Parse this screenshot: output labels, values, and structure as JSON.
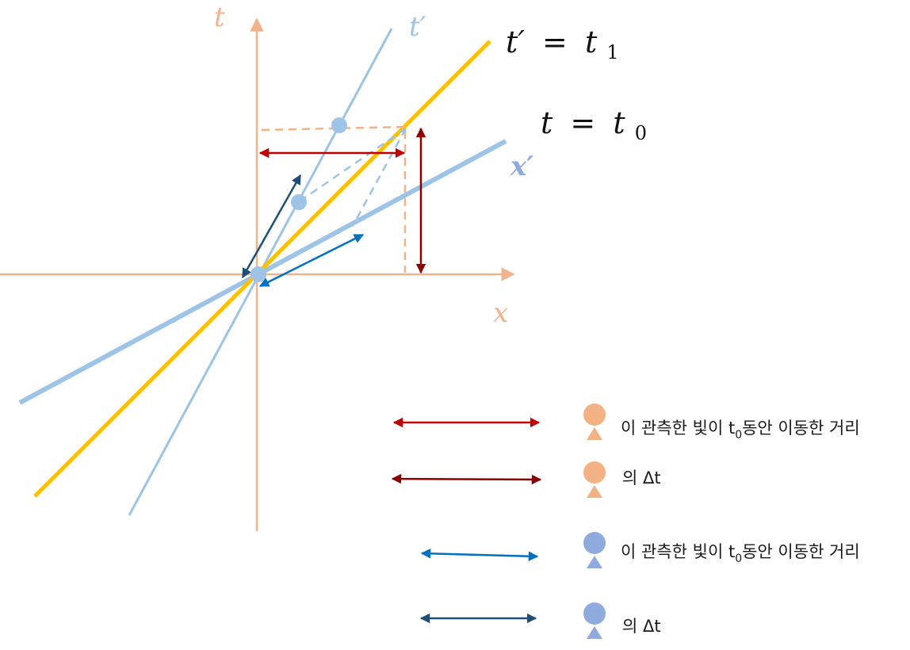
{
  "axes": {
    "t_label": "t",
    "x_label": "x",
    "t_prime_label": "t′",
    "x_prime_label": "x′",
    "axis_color": "#F2B28C"
  },
  "equations": {
    "t_prime_eq": {
      "lhs": "t′",
      "op": "=",
      "var": "t",
      "sub": "1"
    },
    "t_eq": {
      "lhs": "t",
      "op": "=",
      "var": "t",
      "sub": "0"
    }
  },
  "colors": {
    "light_line": "#FFC000",
    "primed_axes": "#9DC3E6",
    "red_arrow": "#C00000",
    "darkred_arrow": "#8B0000",
    "blue_arrow": "#0070C0",
    "navy_arrow": "#1F4E79",
    "orange_observer": "#F4B183",
    "blue_observer": "#8FAADC"
  },
  "legend": [
    {
      "text_pre": "이 관측한 빛이 t",
      "sub": "0",
      "text_post": "동안 이동한 거리",
      "arrow_color": "#C00000",
      "observer": "orange-observer-icon"
    },
    {
      "text_pre": "의 Δt",
      "sub": "",
      "text_post": "",
      "arrow_color": "#8B0000",
      "observer": "orange-observer-icon"
    },
    {
      "text_pre": "이 관측한 빛이 t",
      "sub": "0",
      "text_post": "동안 이동한 거리",
      "arrow_color": "#0070C0",
      "observer": "blue-observer-icon"
    },
    {
      "text_pre": "의 Δt",
      "sub": "",
      "text_post": "",
      "arrow_color": "#1F4E79",
      "observer": "blue-observer-icon"
    }
  ]
}
